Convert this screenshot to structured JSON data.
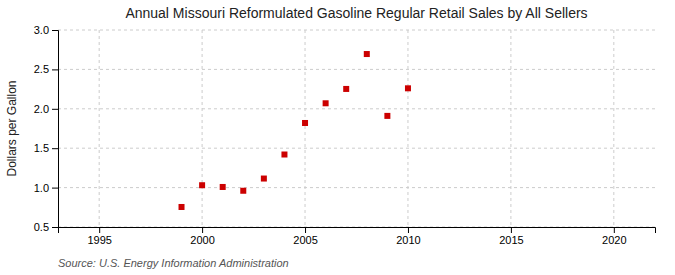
{
  "chart_data": {
    "type": "scatter",
    "title": "Annual Missouri Reformulated Gasoline Regular Retail Sales by All Sellers",
    "ylabel": "Dollars per Gallon",
    "annotations": [
      "Source: U.S. Energy Information Administration"
    ],
    "x": [
      1999,
      2000,
      2001,
      2002,
      2003,
      2004,
      2005,
      2006,
      2007,
      2008,
      2009,
      2010
    ],
    "values": [
      0.754,
      1.03,
      1.008,
      0.96,
      1.115,
      1.42,
      1.82,
      2.07,
      2.252,
      2.695,
      1.91,
      2.26
    ],
    "color": "#cc0000",
    "marker": "square",
    "xlim": [
      1993,
      2022
    ],
    "ylim": [
      0.5,
      3.0
    ],
    "xticks": [
      1995,
      2000,
      2005,
      2010,
      2015,
      2020
    ],
    "yticks": [
      0.5,
      {
        "value": 1.0,
        "label": "1.0"
      },
      1.5,
      {
        "value": 2.0,
        "label": "2.0"
      },
      2.5,
      {
        "value": 3.0,
        "label": "3.0"
      }
    ],
    "grid": true
  }
}
